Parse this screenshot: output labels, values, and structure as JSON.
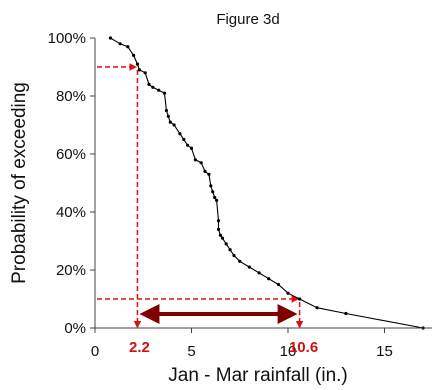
{
  "chart_data": {
    "type": "line",
    "title": "Figure 3d",
    "xlabel": "Jan - Mar rainfall (in.)",
    "ylabel": "Probability of exceeding",
    "xlim": [
      0,
      18
    ],
    "ylim": [
      0,
      100
    ],
    "x_ticks": [
      0,
      5,
      10,
      15
    ],
    "x_tick_labels": [
      "0",
      "5",
      "10",
      "15"
    ],
    "y_ticks": [
      0,
      20,
      40,
      60,
      80,
      100
    ],
    "y_tick_labels": [
      "0%",
      "20%",
      "40%",
      "60%",
      "80%",
      "100%"
    ],
    "grid": false,
    "legend": "none",
    "series": [
      {
        "x": [
          0.8,
          1.3,
          1.7,
          2.0,
          2.2,
          2.3,
          2.6,
          2.8,
          3.0,
          3.3,
          3.6,
          3.7,
          3.8,
          3.9,
          4.1,
          4.4,
          4.6,
          4.8,
          5.0,
          5.2,
          5.5,
          5.7,
          5.9,
          6.0,
          6.1,
          6.2,
          6.3,
          6.4,
          6.4,
          6.5,
          6.6,
          6.8,
          7.0,
          7.2,
          7.5,
          8.0,
          8.5,
          9.0,
          9.5,
          10.0,
          10.6,
          11.5,
          13.0,
          17.0
        ],
        "y": [
          100,
          98,
          97,
          94,
          91,
          89,
          88,
          84,
          83,
          82,
          81,
          75,
          73,
          71,
          70,
          67,
          65,
          63,
          62,
          58,
          57,
          54,
          53,
          49,
          47,
          45,
          44,
          37,
          34,
          32,
          31,
          29,
          27,
          25,
          23,
          21,
          19,
          17,
          15,
          12,
          10,
          7,
          5,
          0
        ],
        "color": "#000000"
      }
    ],
    "annotations": {
      "color": "#e01010",
      "range_arrow_color": "#800000",
      "markers": [
        {
          "x": 2.2,
          "y": 90,
          "label": "2.2"
        },
        {
          "x": 10.6,
          "y": 10,
          "label": "10.6"
        }
      ]
    }
  }
}
